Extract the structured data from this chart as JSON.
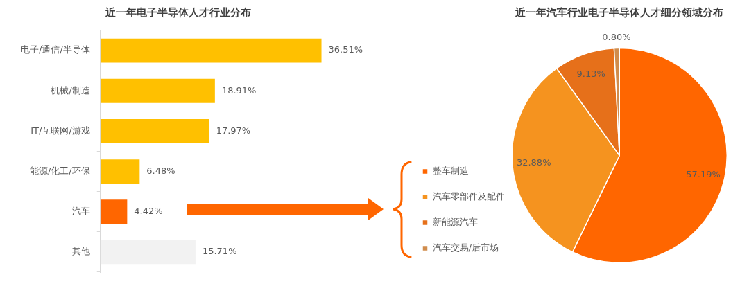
{
  "chart_data": [
    {
      "type": "bar",
      "title": "近一年电子半导体人才行业分布",
      "orientation": "horizontal",
      "categories": [
        "电子/通信/半导体",
        "机械/制造",
        "IT/互联网/游戏",
        "能源/化工/环保",
        "汽车",
        "其他"
      ],
      "values": [
        36.51,
        18.91,
        17.97,
        6.48,
        4.42,
        15.71
      ],
      "colors": [
        "#ffc000",
        "#ffc000",
        "#ffc000",
        "#ffc000",
        "#ff6600",
        "#f2f2f2"
      ],
      "value_labels": [
        "36.51%",
        "18.91%",
        "17.97%",
        "6.48%",
        "4.42%",
        "15.71%"
      ]
    },
    {
      "type": "pie",
      "title": "近一年汽车行业电子半导体人才细分领域分布",
      "categories": [
        "整车制造",
        "汽车零部件及配件",
        "新能源汽车",
        "汽车交易/后市场"
      ],
      "values": [
        57.19,
        32.88,
        9.13,
        0.8
      ],
      "colors": [
        "#ff6600",
        "#f5931f",
        "#e6701a",
        "#d08c4c"
      ],
      "value_labels": [
        "57.19%",
        "32.88%",
        "9.13%",
        "0.80%"
      ],
      "legend": "left"
    }
  ]
}
